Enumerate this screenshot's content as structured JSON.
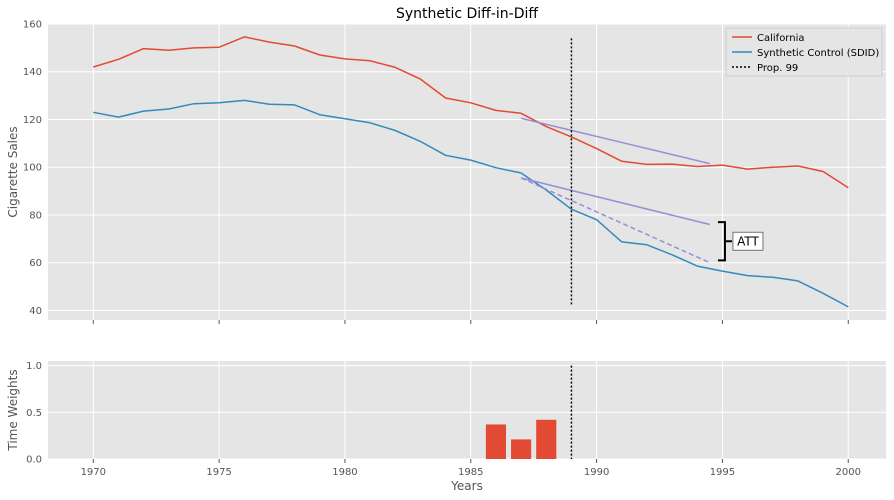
{
  "chart_data": [
    {
      "type": "line",
      "title": "Synthetic Diff-in-Diff",
      "xlabel": "",
      "ylabel": "Cigarette Sales",
      "xlim": [
        1968.2,
        2001.5
      ],
      "ylim": [
        36,
        160
      ],
      "yticks": [
        40,
        60,
        80,
        100,
        120,
        140,
        160
      ],
      "grid": true,
      "legend_placement": "top-right",
      "x": [
        1970,
        1971,
        1972,
        1973,
        1974,
        1975,
        1976,
        1977,
        1978,
        1979,
        1980,
        1981,
        1982,
        1983,
        1984,
        1985,
        1986,
        1987,
        1988,
        1989,
        1990,
        1991,
        1992,
        1993,
        1994,
        1995,
        1996,
        1997,
        1998,
        1999,
        2000
      ],
      "series": [
        {
          "name": "California",
          "color": "#e24a33",
          "values": [
            142,
            145.2,
            149.7,
            149,
            150,
            150.3,
            154.6,
            152.4,
            150.8,
            147,
            145.4,
            144.6,
            141.8,
            136.9,
            129,
            127,
            123.8,
            122.6,
            117,
            112.7,
            107.8,
            102.5,
            101.2,
            101.3,
            100.3,
            100.9,
            99.2,
            100,
            100.5,
            98.2,
            91.4
          ]
        },
        {
          "name": "Synthetic Control (SDID)",
          "color": "#348abd",
          "values": [
            123,
            121,
            123.5,
            124.4,
            126.6,
            127,
            128,
            126.4,
            126.1,
            122,
            120.3,
            118.6,
            115.4,
            110.8,
            105,
            103,
            99.8,
            97.6,
            90.4,
            82.4,
            78,
            68.7,
            67.5,
            63.3,
            58.6,
            56.5,
            54.6,
            53.9,
            52.4,
            47.2,
            41.5
          ]
        }
      ],
      "treatment": {
        "name": "Prop. 99",
        "x": 1989
      },
      "trend_lines": [
        {
          "from": [
            1987,
            120.5
          ],
          "to": [
            1994.5,
            101.5
          ],
          "style": "solid",
          "color": "#988ed5"
        },
        {
          "from": [
            1987,
            95.5
          ],
          "to": [
            1994.5,
            76
          ],
          "style": "solid",
          "color": "#988ed5"
        },
        {
          "from": [
            1987,
            95.5
          ],
          "to": [
            1994.5,
            60
          ],
          "style": "dashed",
          "color": "#988ed5"
        }
      ],
      "annotation": {
        "text": "ATT",
        "y_from": 61,
        "y_to": 77
      }
    },
    {
      "type": "bar",
      "title": "",
      "xlabel": "Years",
      "ylabel": "Time Weights",
      "xlim": [
        1968.2,
        2001.5
      ],
      "ylim": [
        0,
        1.05
      ],
      "yticks": [
        0.0,
        0.5,
        1.0
      ],
      "ytick_labels": [
        "0.0",
        "0.5",
        "1.0"
      ],
      "xticks": [
        1970,
        1975,
        1980,
        1985,
        1990,
        1995,
        2000
      ],
      "grid": true,
      "bar_color": "#e24a33",
      "x": [
        1986,
        1987,
        1988
      ],
      "values": [
        0.37,
        0.21,
        0.42
      ],
      "treatment_x": 1989
    }
  ]
}
